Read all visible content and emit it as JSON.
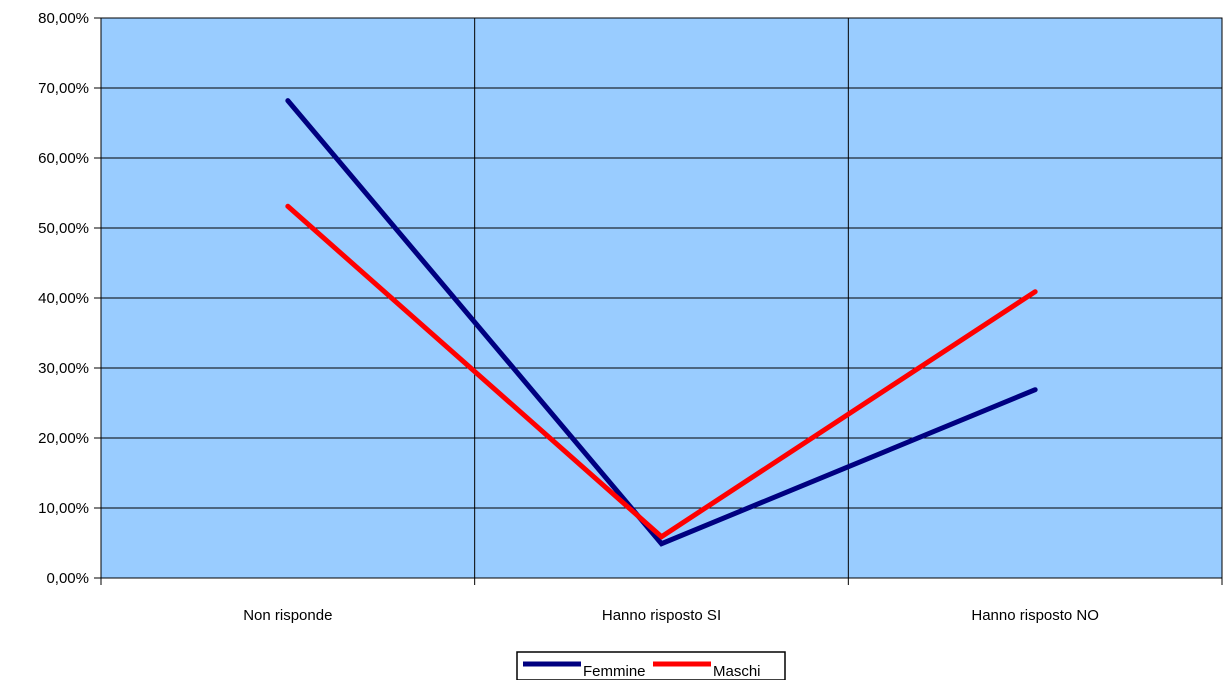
{
  "chart_data": {
    "type": "line",
    "title": "",
    "xlabel": "",
    "ylabel": "",
    "categories": [
      "Non risponde",
      "Hanno risposto SI",
      "Hanno risposto NO"
    ],
    "series": [
      {
        "name": "Femmine",
        "color": "#000080",
        "values": [
          68.2,
          4.9,
          26.9
        ]
      },
      {
        "name": "Maschi",
        "color": "#ff0000",
        "values": [
          53.1,
          5.9,
          40.9
        ]
      }
    ],
    "ylim": [
      0,
      80
    ],
    "yticks": [
      0,
      10,
      20,
      30,
      40,
      50,
      60,
      70,
      80
    ],
    "ytick_labels": [
      "0,00%",
      "10,00%",
      "20,00%",
      "30,00%",
      "40,00%",
      "50,00%",
      "60,00%",
      "70,00%",
      "80,00%"
    ],
    "grid": true,
    "plot_background": "#99ccff",
    "legend_position": "bottom"
  }
}
